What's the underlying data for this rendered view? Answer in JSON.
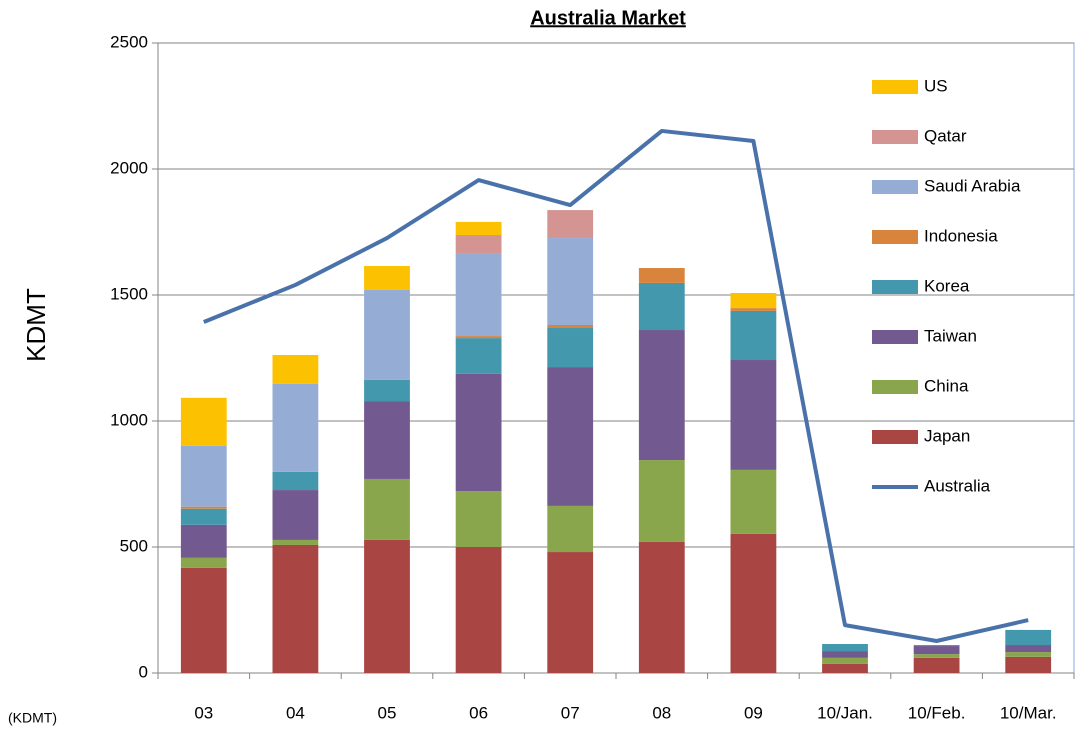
{
  "chart_data": {
    "type": "bar",
    "stacked": true,
    "title": "Australia Market",
    "y_label": "KDMT",
    "note": "(KDMT)",
    "categories": [
      "03",
      "04",
      "05",
      "06",
      "07",
      "08",
      "09",
      "10/Jan.",
      "10/Feb.",
      "10/Mar."
    ],
    "ylim": [
      0,
      2500
    ],
    "yticks": [
      0,
      500,
      1000,
      1500,
      2000,
      2500
    ],
    "grid": true,
    "series": [
      {
        "name": "Japan",
        "color": "#a94543",
        "values": [
          417,
          508,
          528,
          500,
          480,
          520,
          552,
          36,
          60,
          64
        ]
      },
      {
        "name": "China",
        "color": "#8aa64d",
        "values": [
          40,
          20,
          242,
          222,
          183,
          325,
          254,
          24,
          15,
          19
        ]
      },
      {
        "name": "Taiwan",
        "color": "#725a91",
        "values": [
          131,
          198,
          309,
          465,
          551,
          516,
          436,
          27,
          32,
          28
        ]
      },
      {
        "name": "Korea",
        "color": "#4398ae",
        "values": [
          64,
          72,
          84,
          142,
          155,
          187,
          195,
          28,
          4,
          60
        ]
      },
      {
        "name": "Indonesia",
        "color": "#d9843c",
        "values": [
          8,
          0,
          0,
          8,
          12,
          59,
          11,
          0,
          0,
          0
        ]
      },
      {
        "name": "Saudi Arabia",
        "color": "#95acd5",
        "values": [
          242,
          349,
          357,
          326,
          345,
          0,
          0,
          0,
          0,
          0
        ]
      },
      {
        "name": "Qatar",
        "color": "#d49492",
        "values": [
          0,
          0,
          0,
          75,
          111,
          0,
          0,
          0,
          0,
          0
        ]
      },
      {
        "name": "US",
        "color": "#fcc100",
        "values": [
          190,
          115,
          95,
          52,
          0,
          0,
          60,
          0,
          0,
          0
        ]
      },
      {
        "name": "Australia",
        "color": "#4a72aa",
        "type": "line",
        "values": [
          1393,
          1540,
          1726,
          1956,
          1857,
          2151,
          2111,
          190,
          127,
          210
        ]
      }
    ]
  }
}
